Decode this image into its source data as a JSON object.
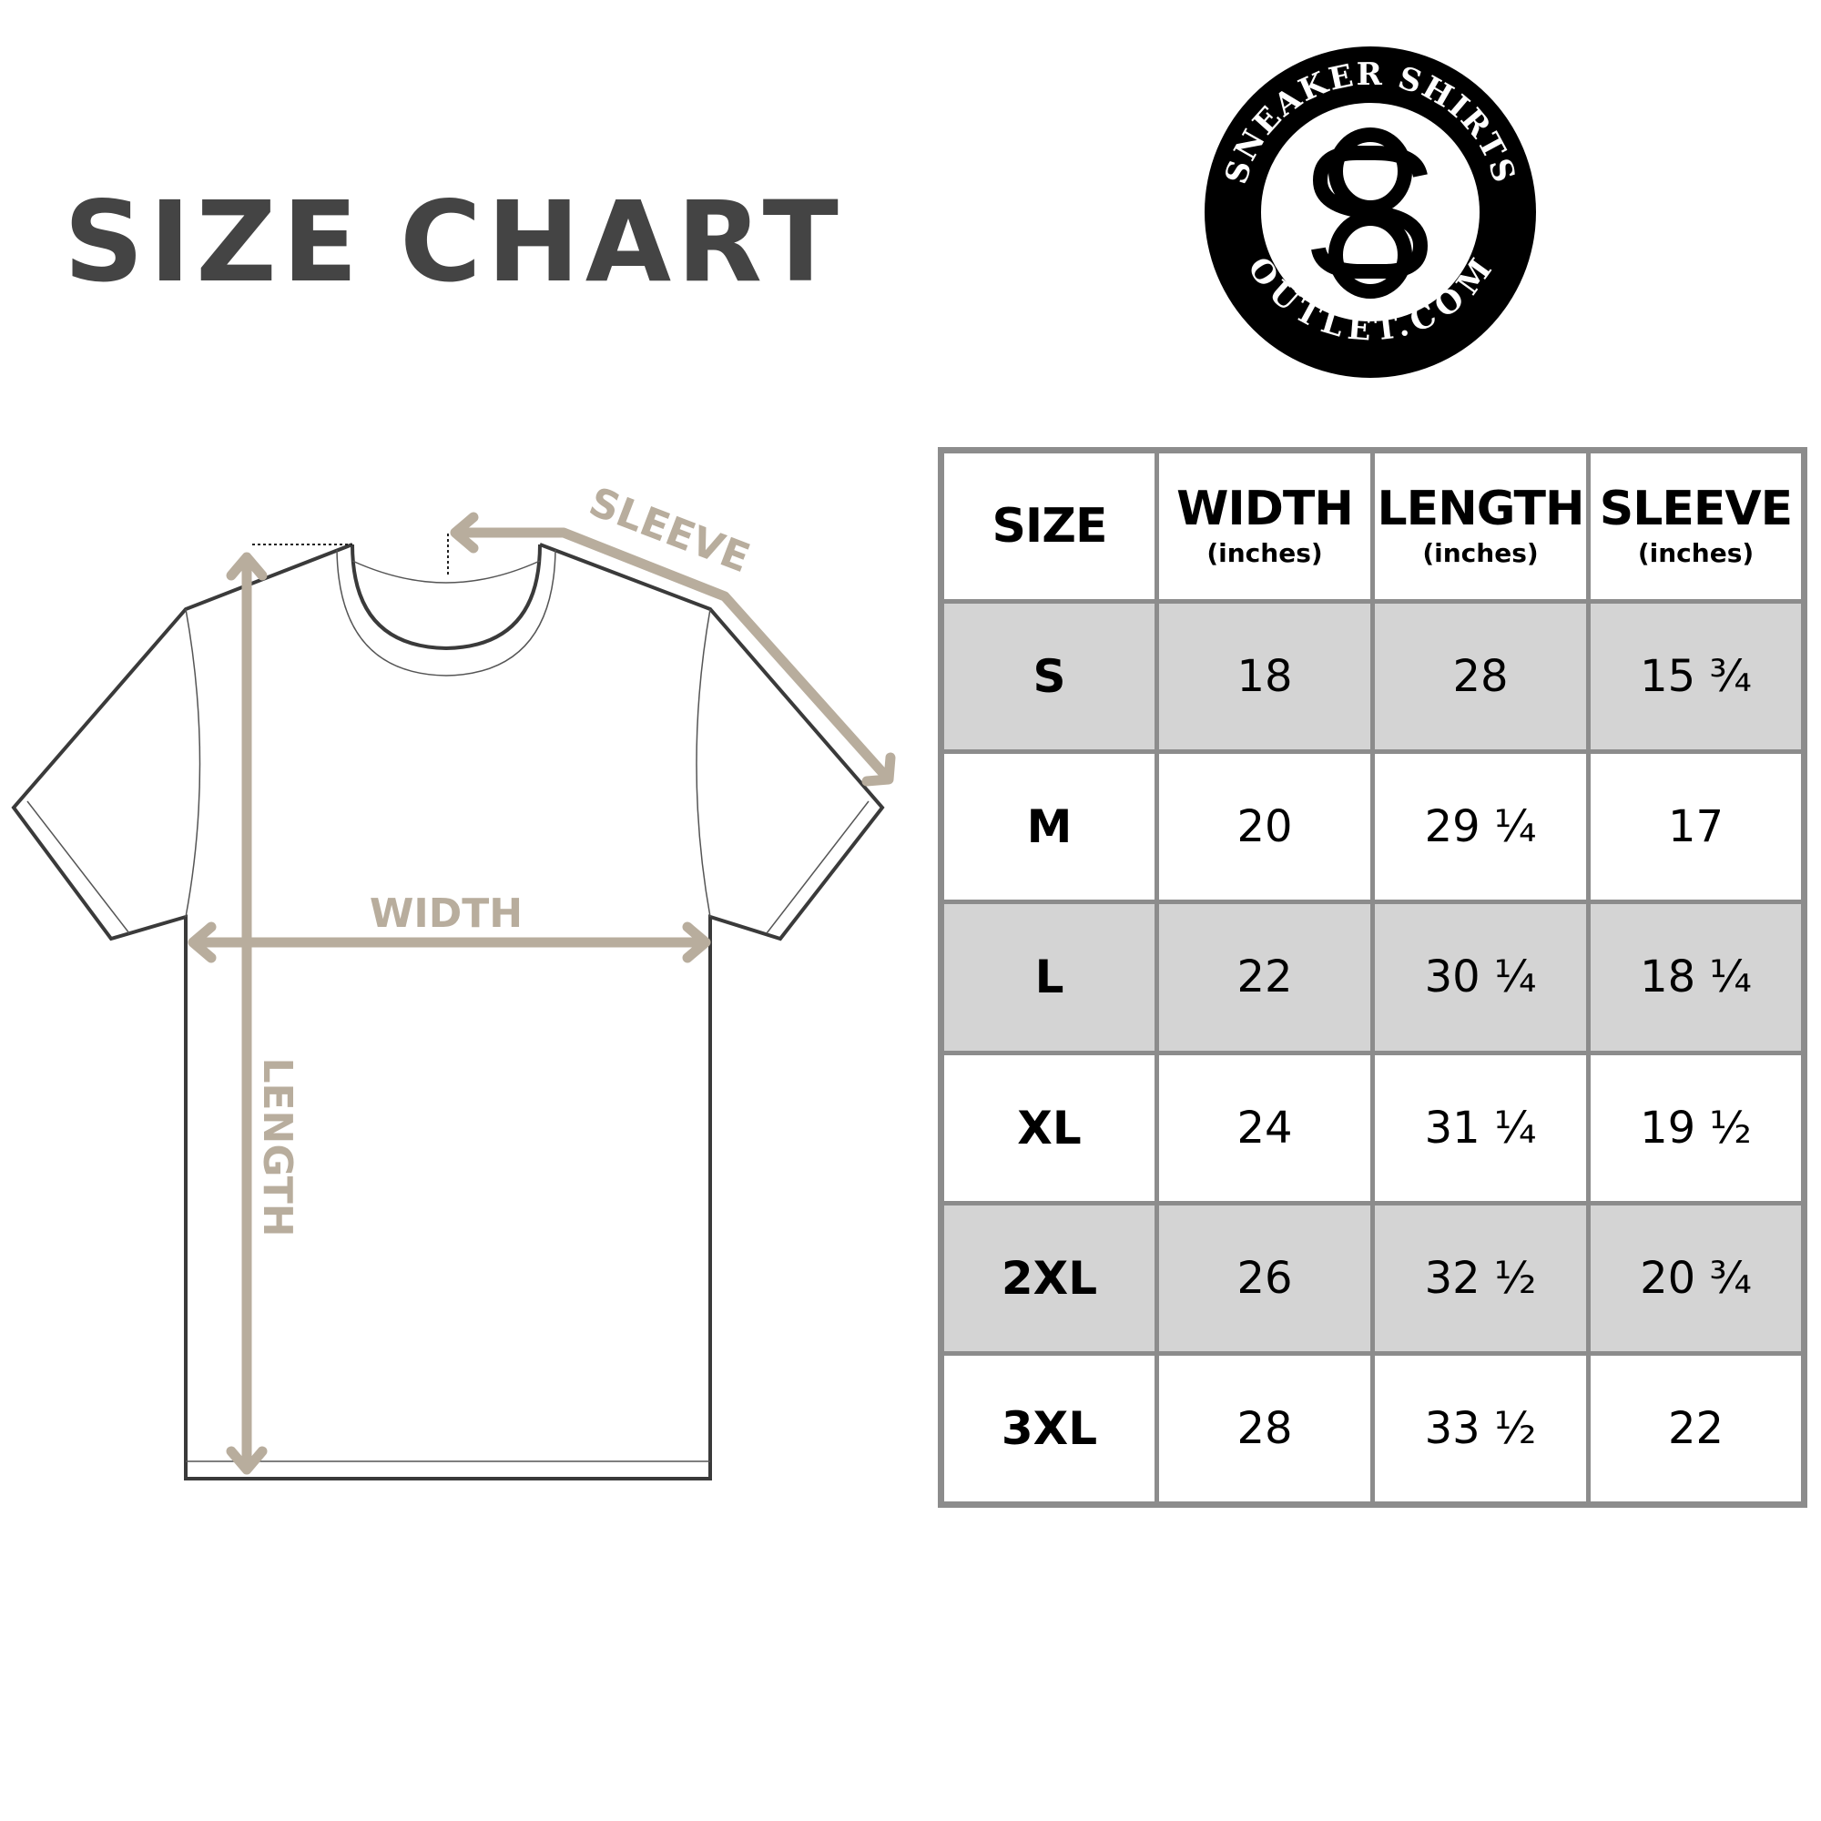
{
  "title": {
    "word1": "SIZE",
    "word2": "CHART"
  },
  "logo": {
    "top_text": "SNEAKER SHIRTS",
    "bottom_text": "OUTLET.COM",
    "monogram": "SO"
  },
  "diagram": {
    "sleeve_label": "SLEEVE",
    "width_label": "WIDTH",
    "length_label": "LENGTH"
  },
  "table": {
    "headers": [
      {
        "label": "SIZE",
        "unit": ""
      },
      {
        "label": "WIDTH",
        "unit": "(inches)"
      },
      {
        "label": "LENGTH",
        "unit": "(inches)"
      },
      {
        "label": "SLEEVE",
        "unit": "(inches)"
      }
    ],
    "rows": [
      [
        "S",
        "18",
        "28",
        "15 ¾"
      ],
      [
        "M",
        "20",
        "29 ¼",
        "17"
      ],
      [
        "L",
        "22",
        "30 ¼",
        "18 ¼"
      ],
      [
        "XL",
        "24",
        "31 ¼",
        "19 ½"
      ],
      [
        "2XL",
        "26",
        "32 ½",
        "20 ¾"
      ],
      [
        "3XL",
        "28",
        "33 ½",
        "22"
      ]
    ]
  },
  "colors": {
    "title": "#444444",
    "measure": "#b8ad9d",
    "grid": "#8c8c8c",
    "shade": "#d4d4d4",
    "outline": "#3a3a3a"
  }
}
